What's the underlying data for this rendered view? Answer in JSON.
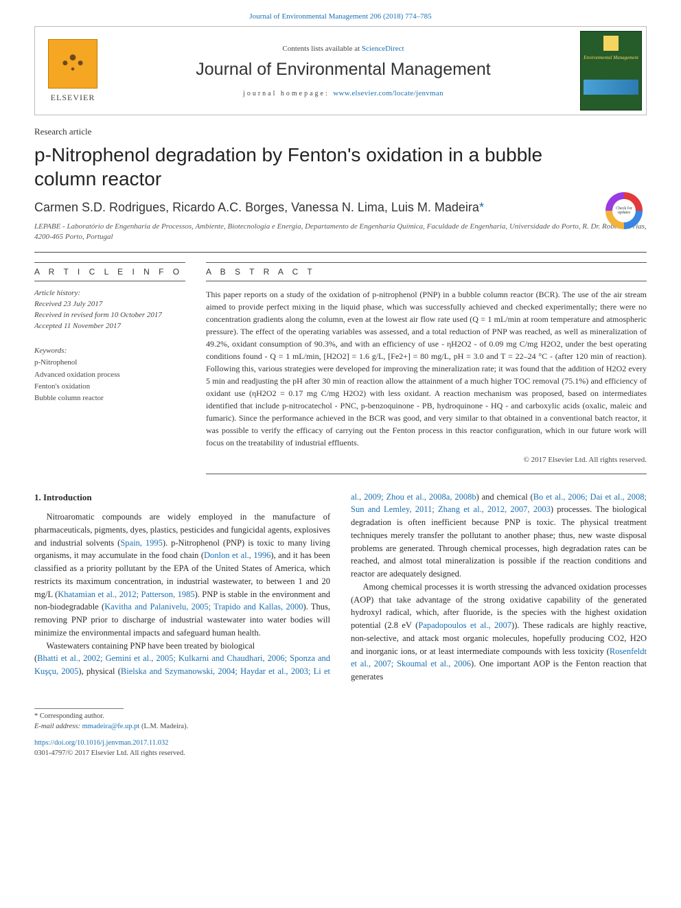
{
  "topLink": {
    "prefix": "Journal of Environmental Management 206 (2018) 774–785"
  },
  "header": {
    "contentsPrefix": "Contents lists available at ",
    "contentsLink": "ScienceDirect",
    "journalName": "Journal of Environmental Management",
    "homepageLabel": "journal homepage: ",
    "homepageUrl": "www.elsevier.com/locate/jenvman",
    "elsevier": "ELSEVIER",
    "coverTitle": "Environmental Management",
    "checkUpdates": "Check for updates"
  },
  "meta": {
    "category": "Research article",
    "title": "p-Nitrophenol degradation by Fenton's oxidation in a bubble column reactor",
    "authors": "Carmen S.D. Rodrigues, Ricardo A.C. Borges, Vanessa N. Lima, Luis M. Madeira",
    "asterisk": "*",
    "affiliation": "LEPABE - Laboratório de Engenharia de Processos, Ambiente, Biotecnologia e Energia, Departamento de Engenharia Química, Faculdade de Engenharia, Universidade do Porto, R. Dr. Roberto Frias, 4200-465 Porto, Portugal"
  },
  "info": {
    "headInfo": "A R T I C L E   I N F O",
    "historyLabel": "Article history:",
    "received": "Received 23 July 2017",
    "revised": "Received in revised form 10 October 2017",
    "accepted": "Accepted 11 November 2017",
    "keywordsLabel": "Keywords:",
    "kw1": "p-Nitrophenol",
    "kw2": "Advanced oxidation process",
    "kw3": "Fenton's oxidation",
    "kw4": "Bubble column reactor"
  },
  "abstract": {
    "head": "A B S T R A C T",
    "text": "This paper reports on a study of the oxidation of p-nitrophenol (PNP) in a bubble column reactor (BCR). The use of the air stream aimed to provide perfect mixing in the liquid phase, which was successfully achieved and checked experimentally; there were no concentration gradients along the column, even at the lowest air flow rate used (Q = 1 mL/min at room temperature and atmospheric pressure). The effect of the operating variables was assessed, and a total reduction of PNP was reached, as well as mineralization of 49.2%, oxidant consumption of 90.3%, and with an efficiency of use - ηH2O2 - of 0.09 mg C/mg H2O2, under the best operating conditions found - Q = 1 mL/min, [H2O2] = 1.6 g/L, [Fe2+] = 80 mg/L, pH = 3.0 and T = 22–24 °C - (after 120 min of reaction). Following this, various strategies were developed for improving the mineralization rate; it was found that the addition of H2O2 every 5 min and readjusting the pH after 30 min of reaction allow the attainment of a much higher TOC removal (75.1%) and efficiency of oxidant use (ηH2O2 = 0.17 mg C/mg H2O2) with less oxidant. A reaction mechanism was proposed, based on intermediates identified that include p-nitrocatechol - PNC, p-benzoquinone - PB, hydroquinone - HQ - and carboxylic acids (oxalic, maleic and fumaric). Since the performance achieved in the BCR was good, and very similar to that obtained in a conventional batch reactor, it was possible to verify the efficacy of carrying out the Fenton process in this reactor configuration, which in our future work will focus on the treatability of industrial effluents.",
    "copyright": "© 2017 Elsevier Ltd. All rights reserved."
  },
  "body": {
    "introHead": "1. Introduction",
    "p1a": "Nitroaromatic compounds are widely employed in the manufacture of pharmaceuticals, pigments, dyes, plastics, pesticides and fungicidal agents, explosives and industrial solvents (",
    "p1r1": "Spain, 1995",
    "p1b": "). p-Nitrophenol (PNP) is toxic to many living organisms, it may accumulate in the food chain (",
    "p1r2": "Donlon et al., 1996",
    "p1c": "), and it has been classified as a priority pollutant by the EPA of the United States of America, which restricts its maximum concentration, in industrial wastewater, to between 1 and 20 mg/L (",
    "p1r3": "Khatamian et al., 2012; Patterson, 1985",
    "p1d": "). PNP is stable in the environment and non-biodegradable (",
    "p1r4": "Kavitha and Palanivelu, 2005; Trapido and Kallas, 2000",
    "p1e": "). Thus, removing PNP prior to discharge of industrial wastewater into water bodies will minimize the environmental impacts and safeguard human health.",
    "p2a": "Wastewaters containing PNP have been treated by biological",
    "p3a": "(",
    "p3r1": "Bhatti et al., 2002; Gemini et al., 2005; Kulkarni and Chaudhari, 2006; Sponza and Kuşçu, 2005",
    "p3b": "), physical (",
    "p3r2": "Bielska and Szymanowski, 2004; Haydar et al., 2003; Li et al., 2009; Zhou et al., 2008a, 2008b",
    "p3c": ") and chemical (",
    "p3r3": "Bo et al., 2006; Dai et al., 2008; Sun and Lemley, 2011; Zhang et al., 2012, 2007, 2003",
    "p3d": ") processes. The biological degradation is often inefficient because PNP is toxic. The physical treatment techniques merely transfer the pollutant to another phase; thus, new waste disposal problems are generated. Through chemical processes, high degradation rates can be reached, and almost total mineralization is possible if the reaction conditions and reactor are adequately designed.",
    "p4a": "Among chemical processes it is worth stressing the advanced oxidation processes (AOP) that take advantage of the strong oxidative capability of the generated hydroxyl radical, which, after fluoride, is the species with the highest oxidation potential (2.8 eV (",
    "p4r1": "Papadopoulos et al., 2007",
    "p4b": ")). These radicals are highly reactive, non-selective, and attack most organic molecules, hopefully producing CO2, H2O and inorganic ions, or at least intermediate compounds with less toxicity (",
    "p4r2": "Rosenfeldt et al., 2007; Skoumal et al., 2006",
    "p4c": "). One important AOP is the Fenton reaction that generates"
  },
  "footer": {
    "corr": "* Corresponding author.",
    "emailLabel": "E-mail address: ",
    "email": "mmadeira@fe.up.pt",
    "emailTail": " (L.M. Madeira).",
    "doi": "https://doi.org/10.1016/j.jenvman.2017.11.032",
    "issn": "0301-4797/© 2017 Elsevier Ltd. All rights reserved."
  },
  "colors": {
    "link": "#1a6fb0",
    "text": "#2a2a2a",
    "rule": "#444444",
    "coverBg": "#265b2a",
    "coverAccent": "#f5d560"
  }
}
